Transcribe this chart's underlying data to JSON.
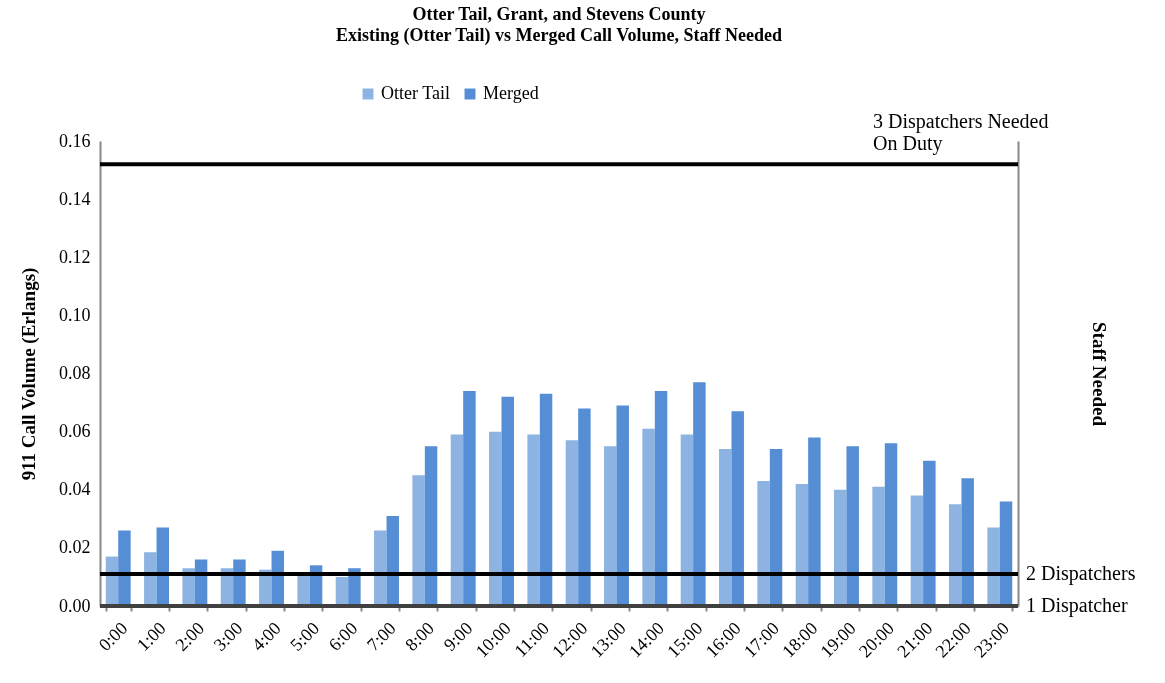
{
  "chart_data": {
    "type": "bar",
    "title": "Otter Tail, Grant, and Stevens County",
    "subtitle": "Existing (Otter  Tail) vs Merged Call Volume, Staff Needed",
    "ylabel": "911 Call Volume (Erlangs)",
    "y2label": "Staff Needed",
    "categories": [
      "0:00",
      "1:00",
      "2:00",
      "3:00",
      "4:00",
      "5:00",
      "6:00",
      "7:00",
      "8:00",
      "9:00",
      "10:00",
      "11:00",
      "12:00",
      "13:00",
      "14:00",
      "15:00",
      "16:00",
      "17:00",
      "18:00",
      "19:00",
      "20:00",
      "21:00",
      "22:00",
      "23:00"
    ],
    "series": [
      {
        "name": "Otter Tail",
        "color": "#8db3e2",
        "values": [
          0.017,
          0.0185,
          0.013,
          0.013,
          0.0125,
          0.011,
          0.01,
          0.026,
          0.045,
          0.059,
          0.06,
          0.059,
          0.057,
          0.055,
          0.061,
          0.059,
          0.054,
          0.043,
          0.042,
          0.04,
          0.041,
          0.038,
          0.035,
          0.027
        ]
      },
      {
        "name": "Merged",
        "color": "#558ed5",
        "values": [
          0.026,
          0.027,
          0.016,
          0.016,
          0.019,
          0.014,
          0.013,
          0.031,
          0.055,
          0.074,
          0.072,
          0.073,
          0.068,
          0.069,
          0.074,
          0.077,
          0.067,
          0.054,
          0.058,
          0.055,
          0.056,
          0.05,
          0.044,
          0.036
        ]
      }
    ],
    "ylim": [
      0,
      0.16
    ],
    "yticks": [
      {
        "value": 0,
        "label": "0.00"
      },
      {
        "value": 0.02,
        "label": "0.02"
      },
      {
        "value": 0.04,
        "label": "0.04"
      },
      {
        "value": 0.06,
        "label": "0.06"
      },
      {
        "value": 0.08,
        "label": "0.08"
      },
      {
        "value": 0.1,
        "label": "0.10"
      },
      {
        "value": 0.12,
        "label": "0.12"
      },
      {
        "value": 0.14,
        "label": "0.14"
      },
      {
        "value": 0.16,
        "label": "0.16"
      }
    ],
    "ref_lines": [
      {
        "axis": "y",
        "value": 0.152,
        "label": "3 Dispatchers Needed\nOn Duty",
        "color": "#000000"
      },
      {
        "axis": "y",
        "value": 0.011,
        "label": "2 Dispatchers",
        "color": "#000000"
      },
      {
        "axis": "y",
        "value": 0,
        "label": "1 Dispatcher",
        "color": "#404040"
      }
    ],
    "grid": false,
    "legend": "top"
  }
}
